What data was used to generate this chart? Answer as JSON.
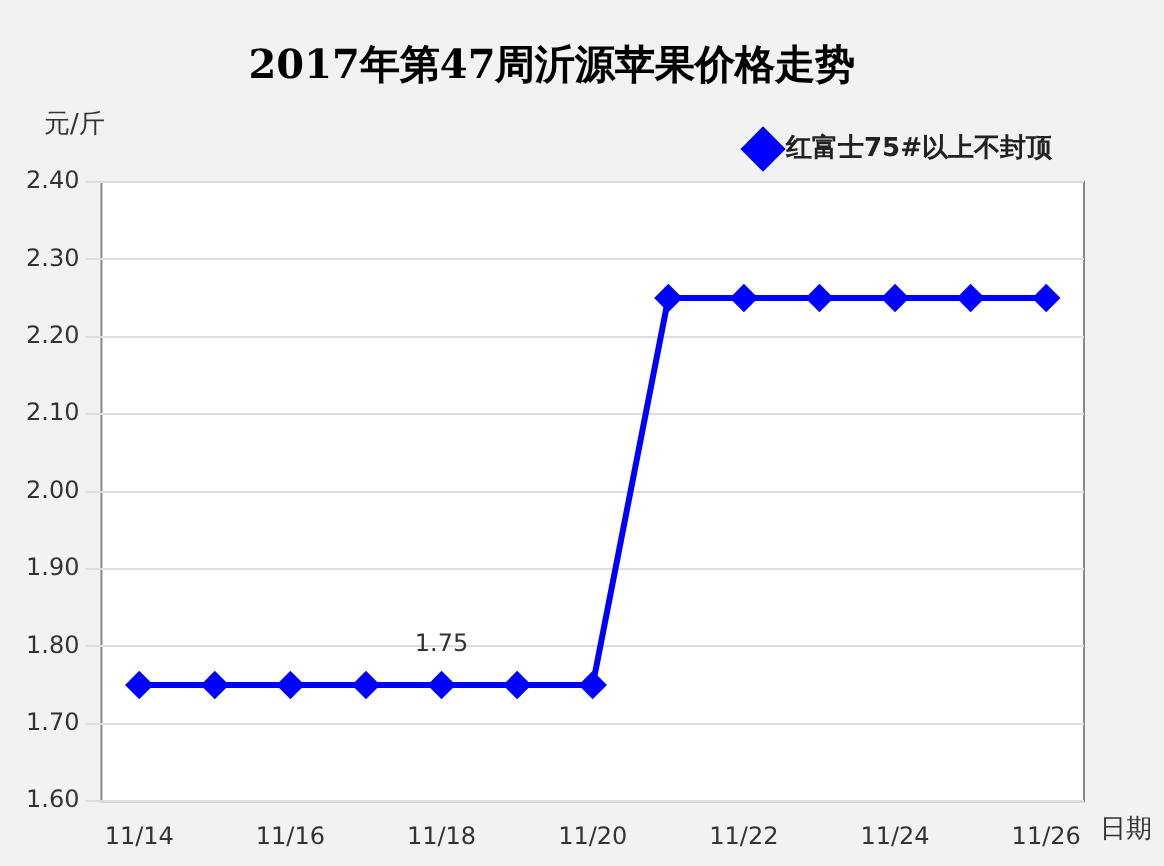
{
  "chart_data": {
    "type": "line",
    "title": "2017年第47周沂源苹果价格走势",
    "ylabel": "元/斤",
    "xlabel": "日期",
    "categories": [
      "11/14",
      null,
      "11/16",
      null,
      "11/18",
      null,
      "11/20",
      null,
      "11/22",
      null,
      "11/24",
      null,
      "11/26"
    ],
    "series": [
      {
        "name": "红富士75#以上不封顶",
        "color": "#0000ff",
        "values": [
          1.75,
          1.75,
          1.75,
          1.75,
          1.75,
          1.75,
          1.75,
          2.25,
          2.25,
          2.25,
          2.25,
          2.25,
          2.25
        ]
      }
    ],
    "ylim": [
      1.6,
      2.4
    ],
    "yticks": [
      {
        "value": 1.6,
        "label": "1.60"
      },
      {
        "value": 1.7,
        "label": "1.70"
      },
      {
        "value": 1.8,
        "label": "1.80"
      },
      {
        "value": 1.9,
        "label": "1.90"
      },
      {
        "value": 2.0,
        "label": "2.00"
      },
      {
        "value": 2.1,
        "label": "2.10"
      },
      {
        "value": 2.2,
        "label": "2.20"
      },
      {
        "value": 2.3,
        "label": "2.30"
      },
      {
        "value": 2.4,
        "label": "2.40"
      }
    ],
    "annotations": [
      {
        "text": "1.75",
        "x": "11/18",
        "y": 1.75
      }
    ],
    "grid": "y",
    "legend": "top right",
    "marker": "diamond",
    "line_style": "solid"
  }
}
